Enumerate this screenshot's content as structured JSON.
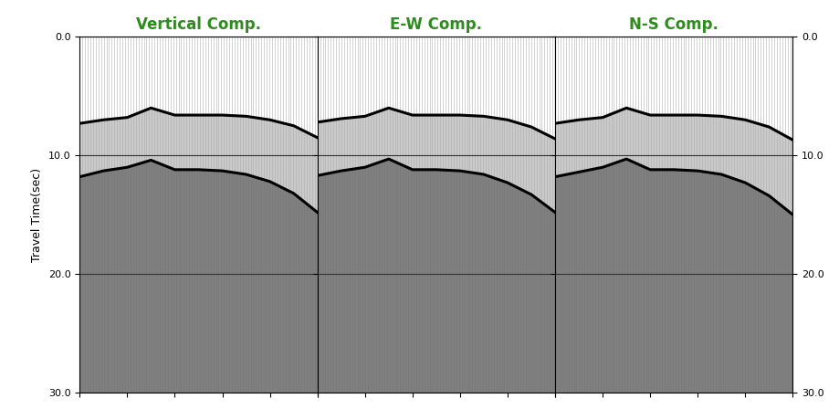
{
  "chart_data": [
    {
      "type": "line",
      "title": "Vertical Comp.",
      "ylabel": "Travel Time(sec)",
      "x": [
        0,
        10,
        20,
        30,
        40,
        50,
        60,
        70,
        80,
        90,
        100
      ],
      "series": [
        {
          "color": "#000000",
          "values": [
            7.3,
            7.0,
            6.8,
            6.0,
            6.6,
            6.6,
            6.6,
            6.7,
            7.0,
            7.5,
            8.5
          ]
        },
        {
          "color": "#000000",
          "values": [
            11.8,
            11.3,
            11.0,
            10.4,
            11.2,
            11.2,
            11.3,
            11.6,
            12.2,
            13.2,
            14.8
          ]
        }
      ],
      "xlim": [
        0,
        100
      ],
      "ylim": [
        30,
        0
      ],
      "yticks": [
        {
          "value": 0,
          "label": "0.0"
        },
        {
          "value": 10,
          "label": "10.0"
        },
        {
          "value": 20,
          "label": "20.0"
        },
        {
          "value": 30,
          "label": "30.0"
        }
      ],
      "grid": "y",
      "tick_labels": "y"
    },
    {
      "type": "line",
      "title": "E-W Comp.",
      "x": [
        0,
        10,
        20,
        30,
        40,
        50,
        60,
        70,
        80,
        90,
        100
      ],
      "series": [
        {
          "color": "#000000",
          "values": [
            7.2,
            6.9,
            6.7,
            6.0,
            6.6,
            6.6,
            6.6,
            6.7,
            7.0,
            7.6,
            8.6
          ]
        },
        {
          "color": "#000000",
          "values": [
            11.7,
            11.3,
            11.0,
            10.3,
            11.2,
            11.2,
            11.3,
            11.6,
            12.3,
            13.3,
            14.8
          ]
        }
      ],
      "xlim": [
        0,
        100
      ],
      "ylim": [
        30,
        0
      ],
      "yticks": [
        {
          "value": 0,
          "label": "0.0"
        },
        {
          "value": 10,
          "label": "10.0"
        },
        {
          "value": 20,
          "label": "20.0"
        },
        {
          "value": 30,
          "label": "30.0"
        }
      ],
      "grid": "y",
      "tick_labels": false
    },
    {
      "type": "line",
      "title": "N-S Comp.",
      "x": [
        0,
        10,
        20,
        30,
        40,
        50,
        60,
        70,
        80,
        90,
        100
      ],
      "series": [
        {
          "color": "#000000",
          "values": [
            7.3,
            7.0,
            6.8,
            6.0,
            6.6,
            6.6,
            6.6,
            6.7,
            7.0,
            7.6,
            8.7
          ]
        },
        {
          "color": "#000000",
          "values": [
            11.8,
            11.4,
            11.0,
            10.3,
            11.2,
            11.2,
            11.3,
            11.6,
            12.3,
            13.4,
            15.0
          ]
        }
      ],
      "xlim": [
        0,
        100
      ],
      "ylim": [
        30,
        0
      ],
      "yticks": [
        {
          "value": 0,
          "label": "0.0"
        },
        {
          "value": 10,
          "label": "10.0"
        },
        {
          "value": 20,
          "label": "20.0"
        },
        {
          "value": 30,
          "label": "30.0"
        }
      ],
      "grid": "y",
      "tick_labels": "y"
    }
  ]
}
